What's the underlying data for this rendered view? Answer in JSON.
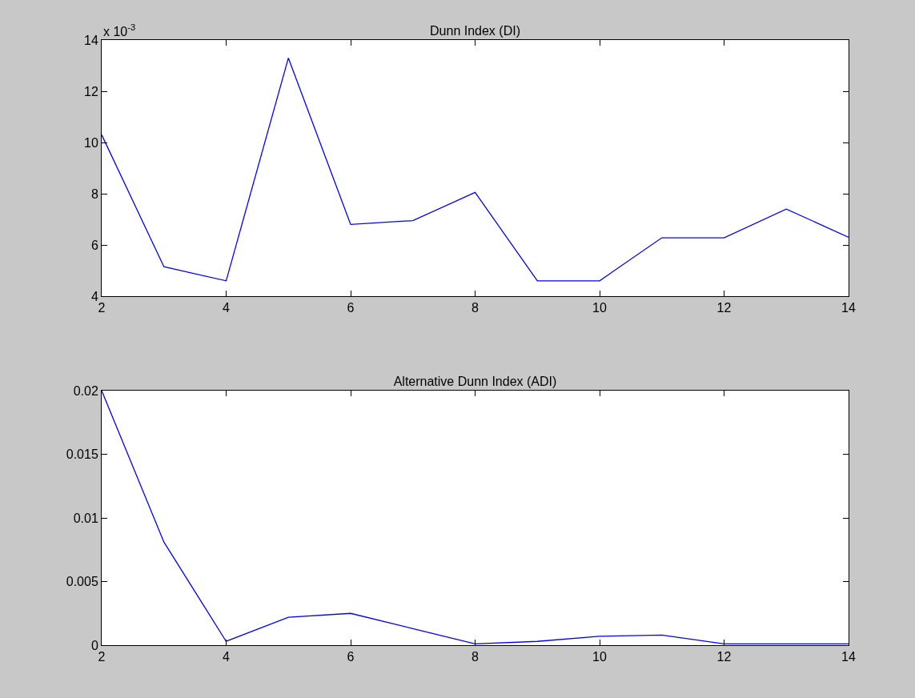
{
  "chart_data": [
    {
      "type": "line",
      "title": "Dunn Index (DI)",
      "x": [
        2,
        3,
        4,
        5,
        6,
        7,
        8,
        9,
        10,
        11,
        12,
        13,
        14
      ],
      "series": [
        {
          "color": "#0000ff",
          "values": [
            10.3,
            5.15,
            4.6,
            13.3,
            6.8,
            6.95,
            8.05,
            4.6,
            4.6,
            6.28,
            6.28,
            7.4,
            6.3
          ]
        }
      ],
      "xlim": [
        2,
        14
      ],
      "xticks": [
        2,
        4,
        6,
        8,
        10,
        12,
        14
      ],
      "ylim": [
        4,
        14
      ],
      "yticks": [
        4,
        6,
        8,
        10,
        12,
        14
      ],
      "annotations": [
        "x 10$^{-3}$"
      ],
      "grid": false,
      "marker": "none",
      "line_style": "solid"
    },
    {
      "type": "line",
      "title": "Alternative Dunn Index (ADI)",
      "x": [
        2,
        3,
        4,
        5,
        6,
        7,
        8,
        9,
        10,
        11,
        12,
        13,
        14
      ],
      "series": [
        {
          "color": "#0000ff",
          "values": [
            0.02,
            0.0081,
            0.0003,
            0.0022,
            0.0025,
            0.0013,
            0.0001,
            0.0003,
            0.0007,
            0.0008,
            0.0001,
            0.0001,
            0.0001
          ]
        }
      ],
      "xlim": [
        2,
        14
      ],
      "xticks": [
        2,
        4,
        6,
        8,
        10,
        12,
        14
      ],
      "ylim": [
        0,
        0.02
      ],
      "yticks": [
        0,
        0.005,
        0.01,
        0.015,
        0.02
      ],
      "grid": false,
      "marker": "none",
      "line_style": "solid"
    }
  ]
}
